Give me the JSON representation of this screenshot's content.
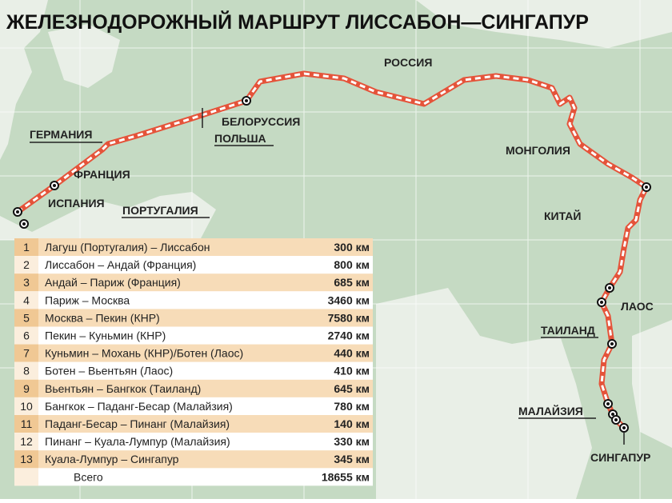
{
  "title": "ЖЕЛЕЗНОДОРОЖНЫЙ МАРШРУТ ЛИССАБОН—СИНГАПУР",
  "labels": [
    "ГЕРМАНИЯ",
    "ФРАНЦИЯ",
    "ИСПАНИЯ",
    "ПОРТУГАЛИЯ",
    "БЕЛОРУССИЯ",
    "ПОЛЬША",
    "РОССИЯ",
    "МОНГОЛИЯ",
    "КИТАЙ",
    "ЛАОС",
    "ТАИЛАНД",
    "МАЛАЙЗИЯ",
    "СИНГАПУР"
  ],
  "table": {
    "rows": [
      [
        "1",
        "Лагуш (Португалия) – Лиссабон",
        "300 км"
      ],
      [
        "2",
        "Лиссабон – Андай (Франция)",
        "800 км"
      ],
      [
        "3",
        "Андай – Париж (Франция)",
        "685 км"
      ],
      [
        "4",
        "Париж – Москва",
        "3460 км"
      ],
      [
        "5",
        "Москва – Пекин (КНР)",
        "7580 км"
      ],
      [
        "6",
        "Пекин – Куньмин (КНР)",
        "2740 км"
      ],
      [
        "7",
        "Куньмин – Мохань (КНР)/Ботен (Лаос)",
        "440 км"
      ],
      [
        "8",
        "Ботен – Вьентьян (Лаос)",
        "410 км"
      ],
      [
        "9",
        "Вьентьян – Бангкок (Таиланд)",
        "645 км"
      ],
      [
        "10",
        "Бангкок – Паданг-Бесар (Малайзия)",
        "780 км"
      ],
      [
        "11",
        "Паданг-Бесар – Пинанг (Малайзия)",
        "140 км"
      ],
      [
        "12",
        "Пинанг – Куала-Лумпур (Малайзия)",
        "330 км"
      ],
      [
        "13",
        "Куала-Лумпур – Сингапур",
        "345 км"
      ]
    ],
    "total": [
      "Всего",
      "18655 км"
    ]
  }
}
